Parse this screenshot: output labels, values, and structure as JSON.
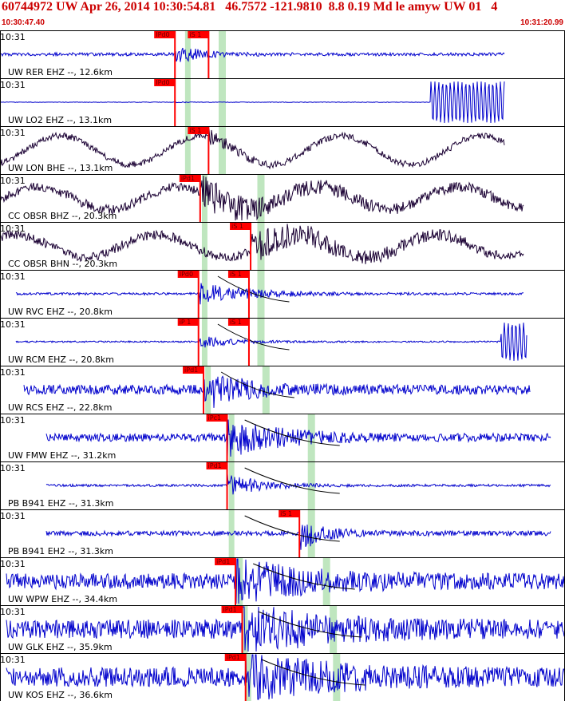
{
  "header": {
    "title": "60744972 UW Apr 26, 2014 10:30:54.81   46.7572 -121.9810  8.8 0.19 Md le amyw UW 01   4",
    "start_time": "10:30:47.40",
    "end_time": "10:31:20.99"
  },
  "colors": {
    "border": "#000000",
    "short_period_trace": "#0000cc",
    "broadband_trace": "#1a0033",
    "pick_marker": "#ff0000",
    "pick_label_bg": "#ff0000",
    "pick_label_text": "#660000",
    "travel_time_window": "#bfe6bf",
    "minute_label": "#000000",
    "theoretical_curve": "#000000"
  },
  "chart_data": {
    "type": "line",
    "x_unit": "time",
    "xlim": [
      "10:30:47.40",
      "10:31:20.99"
    ],
    "minute_mark": "10:31",
    "channels": [
      {
        "label": "UW RER EHZ --, 12.6km",
        "trace": "sp",
        "picks": [
          {
            "name": "IPd0",
            "time": "10:30:57.8"
          },
          {
            "name": "iS 1",
            "time": "10:30:59.8"
          }
        ],
        "window": [
          "10:30:58.4",
          "10:31:00.4"
        ]
      },
      {
        "label": "UW LO2 EHZ --, 13.1km",
        "trace": "sp",
        "picks": [
          {
            "name": "IPd0",
            "time": "10:30:57.8"
          }
        ],
        "window": [
          "10:30:58.4",
          "10:31:00.4"
        ]
      },
      {
        "label": "UW LON BHE --, 13.1km",
        "trace": "bb",
        "picks": [
          {
            "name": "iS 1",
            "time": "10:30:59.8"
          }
        ],
        "window": [
          "10:30:58.4",
          "10:31:00.4"
        ]
      },
      {
        "label": "CC OBSR BHZ --, 20.3km",
        "trace": "bb",
        "picks": [
          {
            "name": "iPd1",
            "time": "10:30:59.3"
          }
        ],
        "window": [
          "10:30:59.4",
          "10:31:02.7"
        ]
      },
      {
        "label": "CC OBSR BHN --, 20.3km",
        "trace": "bb",
        "picks": [
          {
            "name": "iS 1",
            "time": "10:31:02.3"
          }
        ],
        "window": [
          "10:30:59.4",
          "10:31:02.7"
        ]
      },
      {
        "label": "UW RVC EHZ --, 20.8km",
        "trace": "sp",
        "picks": [
          {
            "name": "IPd0",
            "time": "10:30:59.2"
          },
          {
            "name": "iS 1",
            "time": "10:31:02.2"
          }
        ],
        "window": [
          "10:30:59.4",
          "10:31:02.7"
        ]
      },
      {
        "label": "UW RCM EHZ --, 20.8km",
        "trace": "sp",
        "picks": [
          {
            "name": "iP 1",
            "time": "10:30:59.2"
          },
          {
            "name": "iS 1",
            "time": "10:31:02.2"
          }
        ],
        "window": [
          "10:30:59.4",
          "10:31:02.7"
        ]
      },
      {
        "label": "UW RCS EHZ --, 22.8km",
        "trace": "sp",
        "picks": [
          {
            "name": "iPd1",
            "time": "10:30:59.5"
          }
        ],
        "window": [
          "10:30:59.6",
          "10:31:03.0"
        ]
      },
      {
        "label": "UW FMW EHZ --, 31.2km",
        "trace": "sp",
        "picks": [
          {
            "name": "iPc1",
            "time": "10:31:00.9"
          }
        ],
        "window": [
          "10:31:01.0",
          "10:31:05.7"
        ]
      },
      {
        "label": "PB B941 EHZ --, 31.3km",
        "trace": "sp",
        "picks": [
          {
            "name": "iPd1",
            "time": "10:31:00.9"
          }
        ],
        "window": [
          "10:31:01.0",
          "10:31:05.7"
        ]
      },
      {
        "label": "PB B941 EH2 --, 31.3km",
        "trace": "sp",
        "picks": [
          {
            "name": "iS 1",
            "time": "10:31:05.2"
          }
        ],
        "window": [
          "10:31:01.0",
          "10:31:05.7"
        ]
      },
      {
        "label": "UW WPW EHZ --, 34.4km",
        "trace": "sp",
        "picks": [
          {
            "name": "iPd1",
            "time": "10:31:01.4"
          }
        ],
        "window": [
          "10:31:01.5",
          "10:31:06.6"
        ]
      },
      {
        "label": "UW GLK EHZ --, 35.9km",
        "trace": "sp",
        "picks": [
          {
            "name": "iPd1",
            "time": "10:31:01.8"
          }
        ],
        "window": [
          "10:31:01.8",
          "10:31:07.0"
        ]
      },
      {
        "label": "UW KOS EHZ --, 36.6km",
        "trace": "sp",
        "picks": [
          {
            "name": "iPd1",
            "time": "10:31:02.0"
          }
        ],
        "window": [
          "10:31:02.0",
          "10:31:07.2"
        ]
      }
    ]
  }
}
